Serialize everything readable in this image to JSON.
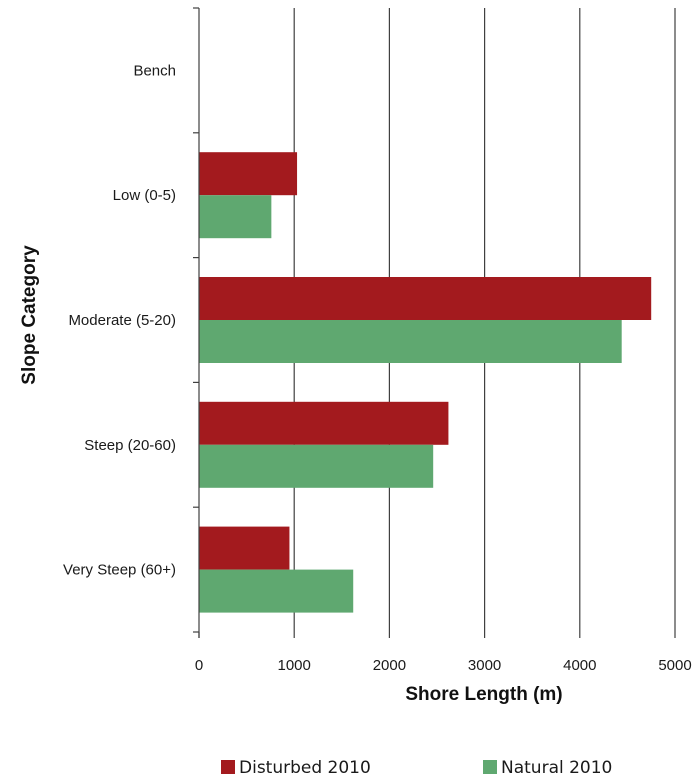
{
  "chart_data": {
    "type": "bar",
    "orientation": "horizontal",
    "title": "",
    "xlabel": "Shore Length (m)",
    "ylabel": "Slope Category",
    "categories": [
      "Bench",
      "Low (0-5)",
      "Moderate (5-20)",
      "Steep (20-60)",
      "Very Steep (60+)"
    ],
    "series": [
      {
        "name": "Disturbed 2010",
        "color": "#a31a1e",
        "values": [
          0,
          1030,
          4750,
          2620,
          950
        ]
      },
      {
        "name": "Natural 2010",
        "color": "#5fa870",
        "values": [
          0,
          760,
          4440,
          2460,
          1620
        ]
      }
    ],
    "xlim": [
      0,
      5000
    ],
    "xticks": [
      "0",
      "1000",
      "2000",
      "3000",
      "4000",
      "5000"
    ],
    "grid": true,
    "legend_position": "bottom"
  }
}
